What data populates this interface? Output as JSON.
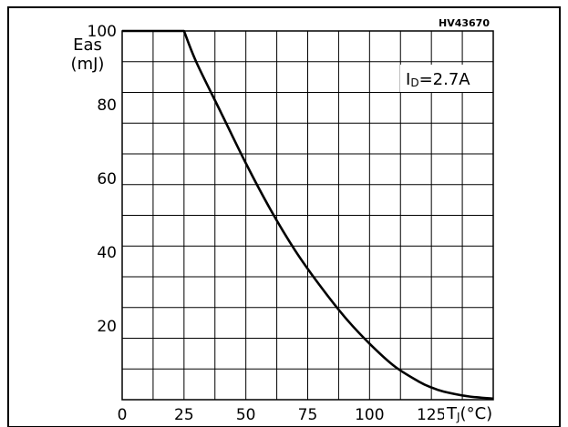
{
  "chart_data": {
    "type": "line",
    "code": "HV43670",
    "annotation": "ID=2.7A",
    "ylabel_line1": "Eas",
    "ylabel_line2": "(mJ)",
    "xlabel": "TJ(°C)",
    "xlim": [
      0,
      150
    ],
    "ylim": [
      0,
      100
    ],
    "x_ticks": [
      {
        "value": 0,
        "label": "0"
      },
      {
        "value": 25,
        "label": "25"
      },
      {
        "value": 50,
        "label": "50"
      },
      {
        "value": 75,
        "label": "75"
      },
      {
        "value": 100,
        "label": "100"
      },
      {
        "value": 125,
        "label": "125"
      }
    ],
    "y_ticks": [
      {
        "value": 20,
        "label": "20"
      },
      {
        "value": 40,
        "label": "40"
      },
      {
        "value": 60,
        "label": "60"
      },
      {
        "value": 80,
        "label": "80"
      },
      {
        "value": 100,
        "label": "100"
      }
    ],
    "grid": true,
    "series": [
      {
        "x": [
          0,
          25,
          30,
          40,
          50,
          60,
          70,
          80,
          90,
          100,
          110,
          120,
          125,
          130,
          140,
          150
        ],
        "y": [
          100,
          100,
          91.5,
          77.8,
          64.1,
          51.5,
          40.4,
          30.9,
          22.4,
          15.2,
          9.1,
          4.9,
          3.3,
          2.2,
          0.9,
          0.3
        ]
      }
    ]
  }
}
